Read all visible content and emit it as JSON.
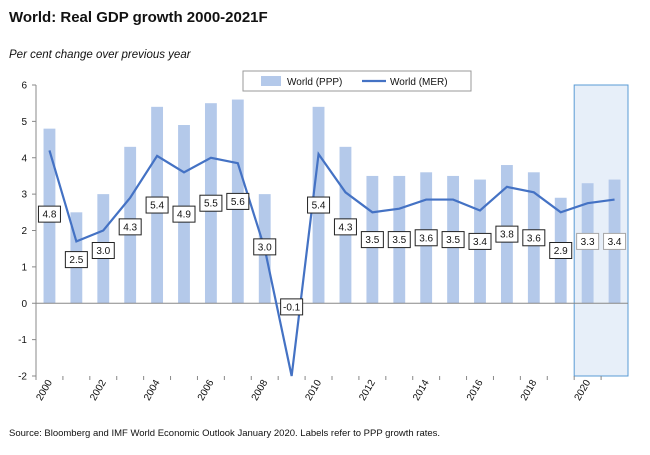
{
  "title": "World: Real GDP growth 2000-2021F",
  "subtitle": "Per cent change over previous year",
  "source": "Source: Bloomberg and IMF World Economic Outlook January 2020.  Labels refer to PPP growth rates.",
  "chart_data": {
    "type": "bar",
    "title": "World: Real GDP growth 2000-2021F",
    "ylabel": "Per cent change over previous year",
    "xlabel": "",
    "ylim": [
      -2,
      6
    ],
    "yticks": [
      -2,
      -1,
      0,
      1,
      2,
      3,
      4,
      5,
      6
    ],
    "x": [
      2000,
      2001,
      2002,
      2003,
      2004,
      2005,
      2006,
      2007,
      2008,
      2009,
      2010,
      2011,
      2012,
      2013,
      2014,
      2015,
      2016,
      2017,
      2018,
      2019,
      2020,
      2021
    ],
    "xtick_labels": [
      "2000",
      "2002",
      "2004",
      "2006",
      "2008",
      "2010",
      "2012",
      "2014",
      "2016",
      "2018",
      "2020"
    ],
    "forecast_years": [
      2020,
      2021
    ],
    "legend_position": "top-center",
    "series": [
      {
        "name": "World (PPP)",
        "type": "bar",
        "color": "#b4c9ea",
        "values": [
          4.8,
          2.5,
          3.0,
          4.3,
          5.4,
          4.9,
          5.5,
          5.6,
          3.0,
          -0.1,
          5.4,
          4.3,
          3.5,
          3.5,
          3.6,
          3.5,
          3.4,
          3.8,
          3.6,
          2.9,
          3.3,
          3.4
        ],
        "labels": [
          "4.8",
          "2.5",
          "3.0",
          "4.3",
          "5.4",
          "4.9",
          "5.5",
          "5.6",
          "3.0",
          "-0.1",
          "5.4",
          "4.3",
          "3.5",
          "3.5",
          "3.6",
          "3.5",
          "3.4",
          "3.8",
          "3.6",
          "2.9",
          "3.3",
          "3.4"
        ]
      },
      {
        "name": "World (MER)",
        "type": "line",
        "color": "#4472c4",
        "values": [
          4.2,
          1.7,
          2.0,
          2.9,
          4.05,
          3.6,
          4.0,
          3.85,
          1.5,
          -2.0,
          4.1,
          3.05,
          2.5,
          2.6,
          2.85,
          2.85,
          2.55,
          3.2,
          3.05,
          2.5,
          2.75,
          2.85
        ]
      }
    ]
  }
}
